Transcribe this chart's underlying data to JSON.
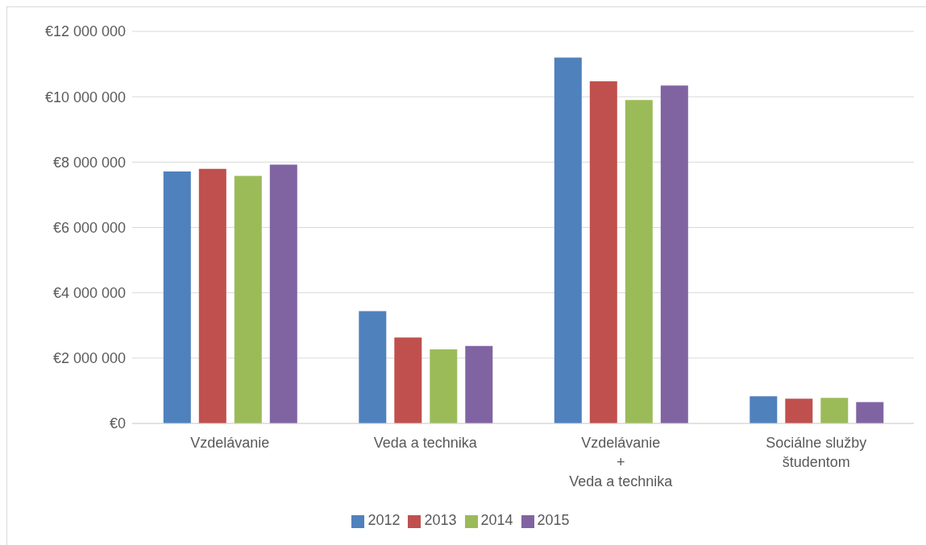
{
  "chart_data": {
    "type": "bar",
    "categories": [
      "Vzdelávanie",
      "Veda a technika",
      "Vzdelávanie\n+\nVeda a technika",
      "Sociálne služby\nštudentom"
    ],
    "series": [
      {
        "name": "2012",
        "color": "#4f81bd",
        "values": [
          7710000,
          3440000,
          11200000,
          830000
        ]
      },
      {
        "name": "2013",
        "color": "#c0504d",
        "values": [
          7790000,
          2630000,
          10470000,
          760000
        ]
      },
      {
        "name": "2014",
        "color": "#9bbb59",
        "values": [
          7580000,
          2270000,
          9900000,
          780000
        ]
      },
      {
        "name": "2015",
        "color": "#8064a2",
        "values": [
          7920000,
          2370000,
          10340000,
          650000
        ]
      }
    ],
    "ylim": [
      0,
      12000000
    ],
    "yticks": [
      {
        "value": 0,
        "label": "€0"
      },
      {
        "value": 2000000,
        "label": "€2 000 000"
      },
      {
        "value": 4000000,
        "label": "€4 000 000"
      },
      {
        "value": 6000000,
        "label": "€6 000 000"
      },
      {
        "value": 8000000,
        "label": "€8 000 000"
      },
      {
        "value": 10000000,
        "label": "€10 000 000"
      },
      {
        "value": 12000000,
        "label": "€12 000 000"
      }
    ],
    "grid": "y",
    "legend": "bottom"
  }
}
